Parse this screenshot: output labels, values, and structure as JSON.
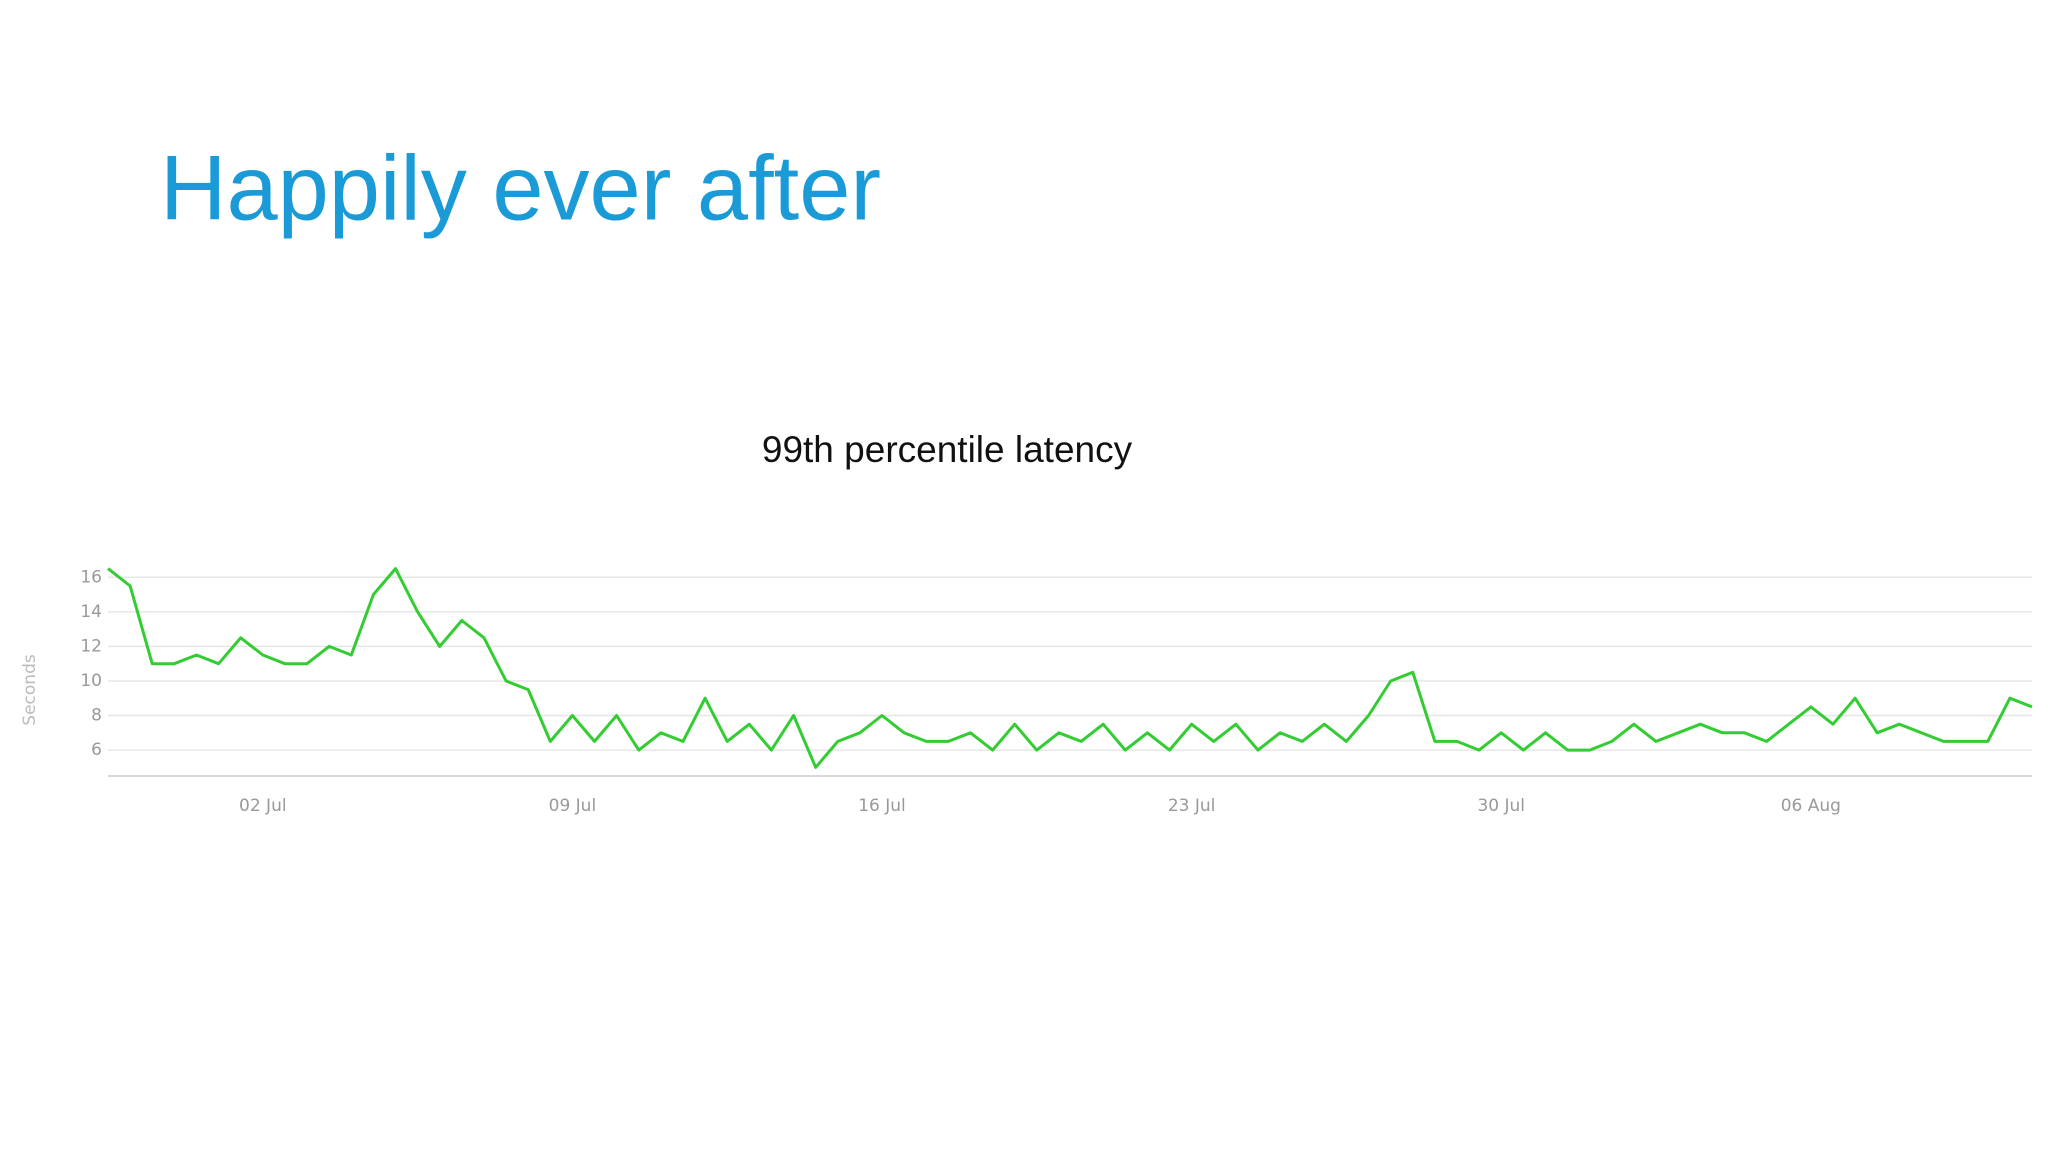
{
  "slide_title": "Happily ever after",
  "chart_data": {
    "type": "line",
    "title": "99th percentile latency",
    "y_label": "Seconds",
    "categories": [
      null,
      null,
      null,
      null,
      null,
      null,
      null,
      "02 Jul",
      null,
      null,
      null,
      null,
      null,
      null,
      null,
      null,
      null,
      null,
      null,
      null,
      null,
      "09 Jul",
      null,
      null,
      null,
      null,
      null,
      null,
      null,
      null,
      null,
      null,
      null,
      null,
      null,
      "16 Jul",
      null,
      null,
      null,
      null,
      null,
      null,
      null,
      null,
      null,
      null,
      null,
      null,
      null,
      "23 Jul",
      null,
      null,
      null,
      null,
      null,
      null,
      null,
      null,
      null,
      null,
      null,
      null,
      null,
      "30 Jul",
      null,
      null,
      null,
      null,
      null,
      null,
      null,
      null,
      null,
      null,
      null,
      null,
      null,
      "06 Aug",
      null,
      null,
      null,
      null,
      null,
      null,
      null,
      null,
      null,
      null
    ],
    "values": [
      16.5,
      15.5,
      11,
      11,
      11.5,
      11,
      12.5,
      11.5,
      11,
      11,
      12,
      11.5,
      15,
      16.5,
      14,
      12,
      13.5,
      12.5,
      10,
      9.5,
      6.5,
      8,
      6.5,
      8,
      6,
      7,
      6.5,
      9,
      6.5,
      7.5,
      6,
      8,
      5,
      6.5,
      7,
      8,
      7,
      6.5,
      6.5,
      7,
      6,
      7.5,
      6,
      7,
      6.5,
      7.5,
      6,
      7,
      6,
      7.5,
      6.5,
      7.5,
      6,
      7,
      6.5,
      7.5,
      6.5,
      8,
      10,
      10.5,
      6.5,
      6.5,
      6,
      7,
      6,
      7,
      6,
      6,
      6.5,
      7.5,
      6.5,
      7,
      7.5,
      7,
      7,
      6.5,
      7.5,
      8.5,
      7.5,
      9,
      7,
      7.5,
      7,
      6.5,
      6.5,
      6.5,
      9,
      8.5
    ],
    "color": "#33cc33",
    "ylim": [
      4.5,
      17
    ],
    "yticks": [
      6,
      8,
      10,
      12,
      14,
      16
    ],
    "grid": true
  }
}
